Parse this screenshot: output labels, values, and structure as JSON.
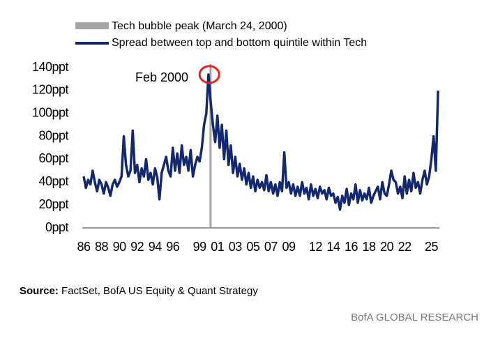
{
  "chart_data": {
    "type": "line",
    "legend": [
      {
        "name": "Tech bubble peak (March 24, 2000)",
        "color": "#a6a6a6"
      }
    ],
    "peak_line": {
      "name": "Tech bubble peak (March 24, 2000)",
      "color": "#a6a6a6",
      "x": 2000.23
    },
    "annotation": {
      "text": "Feb 2000",
      "x": 2000.1,
      "y": 134,
      "color": "#e8231f"
    },
    "series": [
      {
        "name": "Spread between top and bottom quintile within Tech",
        "color": "#14286e",
        "x": [
          1986,
          1986.25,
          1986.5,
          1986.75,
          1987,
          1987.25,
          1987.5,
          1987.75,
          1988,
          1988.25,
          1988.5,
          1988.75,
          1989,
          1989.25,
          1989.5,
          1989.75,
          1990,
          1990.25,
          1990.5,
          1990.75,
          1991,
          1991.25,
          1991.5,
          1991.75,
          1992,
          1992.25,
          1992.5,
          1992.75,
          1993,
          1993.25,
          1993.5,
          1993.75,
          1994,
          1994.25,
          1994.5,
          1994.75,
          1995,
          1995.25,
          1995.5,
          1995.75,
          1996,
          1996.25,
          1996.5,
          1996.75,
          1997,
          1997.25,
          1997.5,
          1997.75,
          1998,
          1998.25,
          1998.5,
          1998.75,
          1999,
          1999.25,
          1999.5,
          1999.75,
          2000,
          2000.25,
          2000.5,
          2000.75,
          2001,
          2001.25,
          2001.5,
          2001.75,
          2002,
          2002.25,
          2002.5,
          2002.75,
          2003,
          2003.25,
          2003.5,
          2003.75,
          2004,
          2004.25,
          2004.5,
          2004.75,
          2005,
          2005.25,
          2005.5,
          2005.75,
          2006,
          2006.25,
          2006.5,
          2006.75,
          2007,
          2007.25,
          2007.5,
          2007.75,
          2008,
          2008.25,
          2008.5,
          2008.75,
          2009,
          2009.25,
          2009.5,
          2009.75,
          2010,
          2010.25,
          2010.5,
          2010.75,
          2011,
          2011.25,
          2011.5,
          2011.75,
          2012,
          2012.25,
          2012.5,
          2012.75,
          2013,
          2013.25,
          2013.5,
          2013.75,
          2014,
          2014.25,
          2014.5,
          2014.75,
          2015,
          2015.25,
          2015.5,
          2015.75,
          2016,
          2016.25,
          2016.5,
          2016.75,
          2017,
          2017.25,
          2017.5,
          2017.75,
          2018,
          2018.25,
          2018.5,
          2018.75,
          2019,
          2019.25,
          2019.5,
          2019.75,
          2020,
          2020.25,
          2020.5,
          2020.75,
          2021,
          2021.25,
          2021.5,
          2021.75,
          2022,
          2022.25,
          2022.5,
          2022.75,
          2023,
          2023.25,
          2023.5,
          2023.75,
          2024,
          2024.25,
          2024.5,
          2024.75,
          2025,
          2025.25,
          2025.5,
          2025.75
        ],
        "values": [
          45,
          35,
          42,
          38,
          50,
          40,
          32,
          42,
          38,
          30,
          40,
          35,
          28,
          38,
          42,
          36,
          40,
          45,
          80,
          55,
          45,
          50,
          85,
          48,
          55,
          40,
          52,
          45,
          60,
          42,
          48,
          38,
          52,
          44,
          25,
          48,
          55,
          62,
          50,
          45,
          70,
          50,
          65,
          48,
          72,
          55,
          62,
          50,
          68,
          45,
          55,
          62,
          58,
          70,
          90,
          100,
          134,
          110,
          90,
          75,
          98,
          70,
          90,
          60,
          85,
          55,
          72,
          48,
          62,
          45,
          56,
          42,
          52,
          38,
          48,
          35,
          45,
          32,
          42,
          35,
          40,
          33,
          46,
          32,
          40,
          30,
          38,
          28,
          40,
          32,
          66,
          35,
          40,
          30,
          38,
          28,
          36,
          28,
          40,
          30,
          35,
          25,
          38,
          28,
          34,
          26,
          36,
          30,
          33,
          25,
          35,
          28,
          30,
          22,
          27,
          16,
          28,
          22,
          34,
          20,
          30,
          25,
          38,
          22,
          33,
          24,
          30,
          25,
          35,
          22,
          28,
          32,
          36,
          25,
          40,
          30,
          28,
          38,
          50,
          42,
          40,
          30,
          36,
          26,
          45,
          30,
          42,
          32,
          48,
          35,
          40,
          30,
          42,
          50,
          38,
          45,
          60,
          80,
          50,
          120
        ]
      }
    ],
    "xlim": [
      1986,
      2025.9
    ],
    "xticks": [
      {
        "value": 1986,
        "label": "86"
      },
      {
        "value": 1988,
        "label": "88"
      },
      {
        "value": 1990,
        "label": "90"
      },
      {
        "value": 1992,
        "label": "92"
      },
      {
        "value": 1994,
        "label": "94"
      },
      {
        "value": 1996,
        "label": "96"
      },
      {
        "value": 1999,
        "label": "99"
      },
      {
        "value": 2001,
        "label": "01"
      },
      {
        "value": 2003,
        "label": "03"
      },
      {
        "value": 2005,
        "label": "05"
      },
      {
        "value": 2007,
        "label": "07"
      },
      {
        "value": 2009,
        "label": "09"
      },
      {
        "value": 2012,
        "label": "12"
      },
      {
        "value": 2014,
        "label": "14"
      },
      {
        "value": 2016,
        "label": "16"
      },
      {
        "value": 2018,
        "label": "18"
      },
      {
        "value": 2020,
        "label": "20"
      },
      {
        "value": 2022,
        "label": "22"
      },
      {
        "value": 2025,
        "label": "25"
      }
    ],
    "ylim": [
      0,
      140
    ],
    "yticks": [
      {
        "value": 0,
        "label": "0ppt"
      },
      {
        "value": 20,
        "label": "20ppt"
      },
      {
        "value": 40,
        "label": "40ppt"
      },
      {
        "value": 60,
        "label": "60ppt"
      },
      {
        "value": 80,
        "label": "80ppt"
      },
      {
        "value": 100,
        "label": "100ppt"
      },
      {
        "value": 120,
        "label": "120ppt"
      },
      {
        "value": 140,
        "label": "140ppt"
      }
    ],
    "source": {
      "label": "Source:",
      "text": "FactSet, BofA US Equity & Quant Strategy"
    },
    "footer": "BofA GLOBAL RESEARCH"
  }
}
